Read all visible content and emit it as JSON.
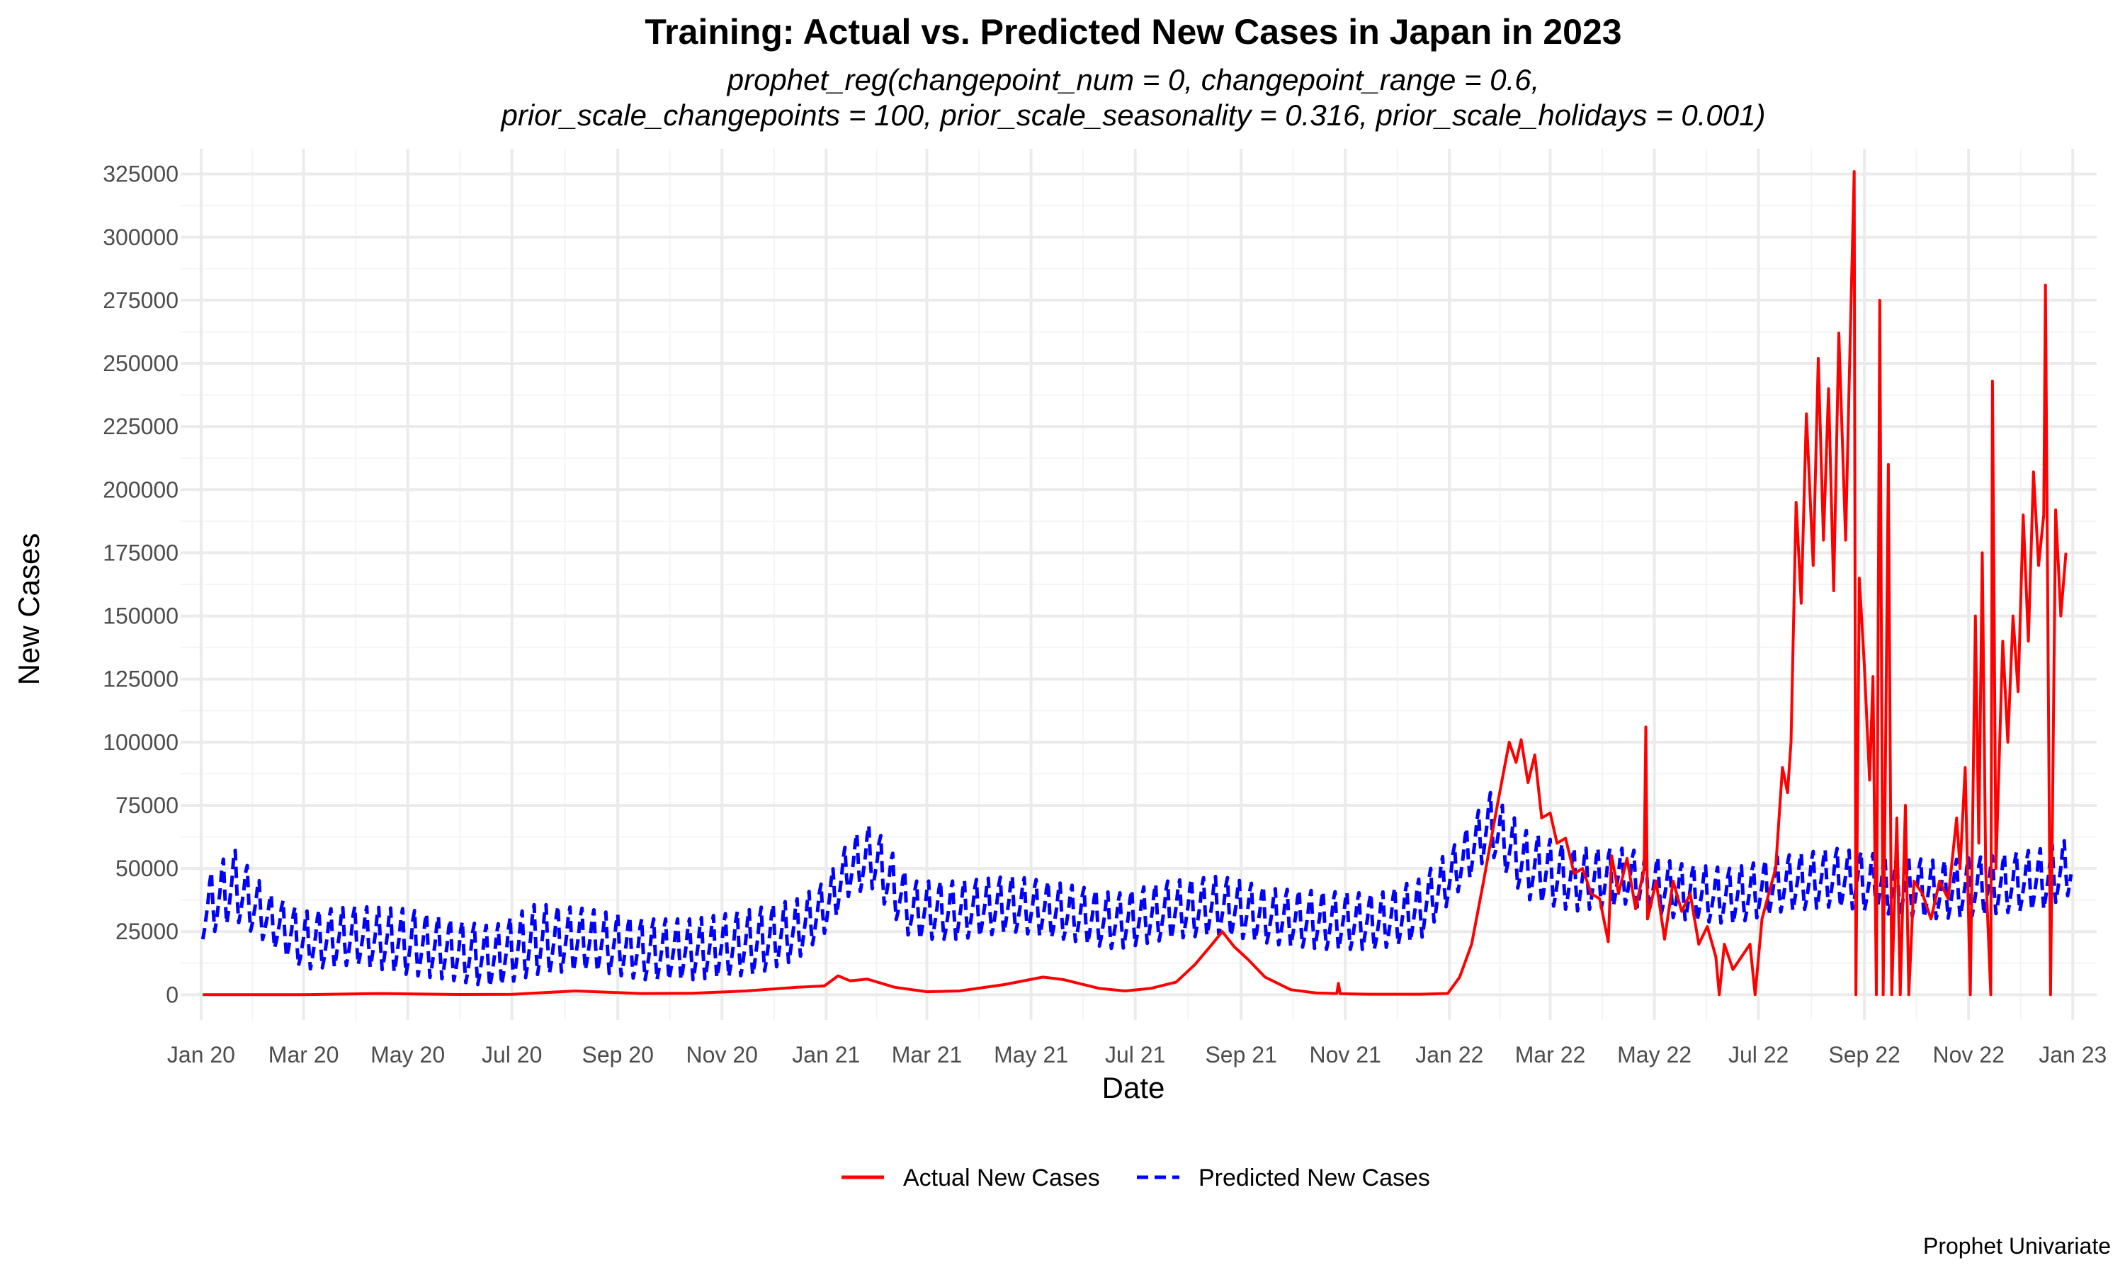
{
  "chart_data": {
    "type": "line",
    "title": "Training: Actual vs. Predicted New Cases in Japan in 2023",
    "subtitle_lines": [
      "prophet_reg(changepoint_num = 0, changepoint_range = 0.6,",
      "prior_scale_changepoints = 100, prior_scale_seasonality = 0.316, prior_scale_holidays = 0.001)"
    ],
    "xlabel": "Date",
    "ylabel": "New Cases",
    "caption": "Prophet Univariate",
    "legend_position": "bottom",
    "grid": true,
    "xlim": [
      "2019-12-20",
      "2023-01-15"
    ],
    "ylim": [
      -10000,
      335000
    ],
    "x_ticks": [
      {
        "date": "2020-01-01",
        "label": "Jan 20"
      },
      {
        "date": "2020-03-01",
        "label": "Mar 20"
      },
      {
        "date": "2020-05-01",
        "label": "May 20"
      },
      {
        "date": "2020-07-01",
        "label": "Jul 20"
      },
      {
        "date": "2020-09-01",
        "label": "Sep 20"
      },
      {
        "date": "2020-11-01",
        "label": "Nov 20"
      },
      {
        "date": "2021-01-01",
        "label": "Jan 21"
      },
      {
        "date": "2021-03-01",
        "label": "Mar 21"
      },
      {
        "date": "2021-05-01",
        "label": "May 21"
      },
      {
        "date": "2021-07-01",
        "label": "Jul 21"
      },
      {
        "date": "2021-09-01",
        "label": "Sep 21"
      },
      {
        "date": "2021-11-01",
        "label": "Nov 21"
      },
      {
        "date": "2022-01-01",
        "label": "Jan 22"
      },
      {
        "date": "2022-03-01",
        "label": "Mar 22"
      },
      {
        "date": "2022-05-01",
        "label": "May 22"
      },
      {
        "date": "2022-07-01",
        "label": "Jul 22"
      },
      {
        "date": "2022-09-01",
        "label": "Sep 22"
      },
      {
        "date": "2022-11-01",
        "label": "Nov 22"
      },
      {
        "date": "2023-01-01",
        "label": "Jan 23"
      }
    ],
    "y_ticks": [
      {
        "value": 0,
        "label": "0"
      },
      {
        "value": 25000,
        "label": "25000"
      },
      {
        "value": 50000,
        "label": "50000"
      },
      {
        "value": 75000,
        "label": "75000"
      },
      {
        "value": 100000,
        "label": "100000"
      },
      {
        "value": 125000,
        "label": "125000"
      },
      {
        "value": 150000,
        "label": "150000"
      },
      {
        "value": 175000,
        "label": "175000"
      },
      {
        "value": 200000,
        "label": "200000"
      },
      {
        "value": 225000,
        "label": "225000"
      },
      {
        "value": 250000,
        "label": "250000"
      },
      {
        "value": 275000,
        "label": "275000"
      },
      {
        "value": 300000,
        "label": "300000"
      },
      {
        "value": 325000,
        "label": "325000"
      }
    ],
    "series": [
      {
        "name": "Actual New Cases",
        "color": "#ff0000",
        "dash": "solid",
        "points": [
          [
            "2020-01-02",
            0
          ],
          [
            "2020-03-01",
            50
          ],
          [
            "2020-04-15",
            500
          ],
          [
            "2020-05-31",
            100
          ],
          [
            "2020-07-01",
            150
          ],
          [
            "2020-08-07",
            1500
          ],
          [
            "2020-09-15",
            500
          ],
          [
            "2020-10-15",
            600
          ],
          [
            "2020-11-15",
            1500
          ],
          [
            "2020-12-15",
            3000
          ],
          [
            "2020-12-31",
            3500
          ],
          [
            "2021-01-08",
            7500
          ],
          [
            "2021-01-15",
            5500
          ],
          [
            "2021-01-25",
            6200
          ],
          [
            "2021-02-10",
            3000
          ],
          [
            "2021-03-01",
            1200
          ],
          [
            "2021-03-20",
            1500
          ],
          [
            "2021-04-15",
            4000
          ],
          [
            "2021-05-08",
            7000
          ],
          [
            "2021-05-20",
            6000
          ],
          [
            "2021-06-10",
            2500
          ],
          [
            "2021-06-25",
            1500
          ],
          [
            "2021-07-10",
            2500
          ],
          [
            "2021-07-25",
            5000
          ],
          [
            "2021-08-05",
            12000
          ],
          [
            "2021-08-15",
            20000
          ],
          [
            "2021-08-21",
            25000
          ],
          [
            "2021-08-28",
            19000
          ],
          [
            "2021-09-05",
            14000
          ],
          [
            "2021-09-15",
            7000
          ],
          [
            "2021-09-30",
            2000
          ],
          [
            "2021-10-15",
            700
          ],
          [
            "2021-10-27",
            500
          ],
          [
            "2021-10-28",
            4500
          ],
          [
            "2021-10-29",
            400
          ],
          [
            "2021-11-15",
            200
          ],
          [
            "2021-12-15",
            200
          ],
          [
            "2021-12-31",
            500
          ],
          [
            "2022-01-07",
            7000
          ],
          [
            "2022-01-14",
            20000
          ],
          [
            "2022-01-21",
            45000
          ],
          [
            "2022-01-29",
            75000
          ],
          [
            "2022-02-05",
            100000
          ],
          [
            "2022-02-09",
            92000
          ],
          [
            "2022-02-12",
            101000
          ],
          [
            "2022-02-16",
            84000
          ],
          [
            "2022-02-20",
            95000
          ],
          [
            "2022-02-24",
            70000
          ],
          [
            "2022-03-01",
            72000
          ],
          [
            "2022-03-05",
            60000
          ],
          [
            "2022-03-10",
            62000
          ],
          [
            "2022-03-15",
            48000
          ],
          [
            "2022-03-20",
            50000
          ],
          [
            "2022-03-25",
            40000
          ],
          [
            "2022-03-30",
            38000
          ],
          [
            "2022-04-04",
            21000
          ],
          [
            "2022-04-06",
            55000
          ],
          [
            "2022-04-10",
            40000
          ],
          [
            "2022-04-15",
            54000
          ],
          [
            "2022-04-20",
            34000
          ],
          [
            "2022-04-25",
            50000
          ],
          [
            "2022-04-26",
            106000
          ],
          [
            "2022-04-27",
            30000
          ],
          [
            "2022-05-02",
            45000
          ],
          [
            "2022-05-07",
            22000
          ],
          [
            "2022-05-12",
            45000
          ],
          [
            "2022-05-17",
            33000
          ],
          [
            "2022-05-22",
            40000
          ],
          [
            "2022-05-27",
            20000
          ],
          [
            "2022-06-01",
            27000
          ],
          [
            "2022-06-06",
            15000
          ],
          [
            "2022-06-08",
            0
          ],
          [
            "2022-06-11",
            20000
          ],
          [
            "2022-06-16",
            10000
          ],
          [
            "2022-06-21",
            15000
          ],
          [
            "2022-06-26",
            20000
          ],
          [
            "2022-06-29",
            0
          ],
          [
            "2022-07-03",
            30000
          ],
          [
            "2022-07-07",
            40000
          ],
          [
            "2022-07-11",
            50000
          ],
          [
            "2022-07-15",
            90000
          ],
          [
            "2022-07-18",
            80000
          ],
          [
            "2022-07-20",
            100000
          ],
          [
            "2022-07-23",
            195000
          ],
          [
            "2022-07-26",
            155000
          ],
          [
            "2022-07-29",
            230000
          ],
          [
            "2022-08-02",
            170000
          ],
          [
            "2022-08-05",
            252000
          ],
          [
            "2022-08-08",
            180000
          ],
          [
            "2022-08-11",
            240000
          ],
          [
            "2022-08-14",
            160000
          ],
          [
            "2022-08-17",
            262000
          ],
          [
            "2022-08-21",
            180000
          ],
          [
            "2022-08-23",
            240000
          ],
          [
            "2022-08-26",
            326000
          ],
          [
            "2022-08-27",
            0
          ],
          [
            "2022-08-29",
            165000
          ],
          [
            "2022-09-01",
            130000
          ],
          [
            "2022-09-04",
            85000
          ],
          [
            "2022-09-06",
            126000
          ],
          [
            "2022-09-08",
            0
          ],
          [
            "2022-09-10",
            275000
          ],
          [
            "2022-09-12",
            0
          ],
          [
            "2022-09-15",
            210000
          ],
          [
            "2022-09-17",
            0
          ],
          [
            "2022-09-20",
            70000
          ],
          [
            "2022-09-22",
            0
          ],
          [
            "2022-09-25",
            75000
          ],
          [
            "2022-09-27",
            0
          ],
          [
            "2022-09-30",
            45000
          ],
          [
            "2022-10-05",
            40000
          ],
          [
            "2022-10-10",
            30000
          ],
          [
            "2022-10-15",
            45000
          ],
          [
            "2022-10-20",
            38000
          ],
          [
            "2022-10-25",
            70000
          ],
          [
            "2022-10-27",
            50000
          ],
          [
            "2022-10-30",
            90000
          ],
          [
            "2022-11-02",
            0
          ],
          [
            "2022-11-05",
            150000
          ],
          [
            "2022-11-07",
            60000
          ],
          [
            "2022-11-09",
            175000
          ],
          [
            "2022-11-11",
            50000
          ],
          [
            "2022-11-14",
            0
          ],
          [
            "2022-11-15",
            243000
          ],
          [
            "2022-11-17",
            50000
          ],
          [
            "2022-11-21",
            140000
          ],
          [
            "2022-11-24",
            100000
          ],
          [
            "2022-11-27",
            150000
          ],
          [
            "2022-11-30",
            120000
          ],
          [
            "2022-12-03",
            190000
          ],
          [
            "2022-12-06",
            140000
          ],
          [
            "2022-12-09",
            207000
          ],
          [
            "2022-12-12",
            170000
          ],
          [
            "2022-12-15",
            190000
          ],
          [
            "2022-12-16",
            281000
          ],
          [
            "2022-12-19",
            0
          ],
          [
            "2022-12-22",
            192000
          ],
          [
            "2022-12-25",
            150000
          ],
          [
            "2022-12-28",
            175000
          ]
        ]
      },
      {
        "name": "Predicted New Cases",
        "color": "#0000ff",
        "dash": "dashed",
        "weekly_amplitude_pattern": [
          0.0,
          0.15,
          0.35,
          0.55,
          0.85,
          1.0,
          0.4
        ],
        "upper_envelope": [
          [
            "2020-01-02",
            45000
          ],
          [
            "2020-01-20",
            58000
          ],
          [
            "2020-02-10",
            40000
          ],
          [
            "2020-03-01",
            33000
          ],
          [
            "2020-04-01",
            35000
          ],
          [
            "2020-05-01",
            34000
          ],
          [
            "2020-05-25",
            30000
          ],
          [
            "2020-06-20",
            27000
          ],
          [
            "2020-07-15",
            36000
          ],
          [
            "2020-08-15",
            34000
          ],
          [
            "2020-09-15",
            30000
          ],
          [
            "2020-10-15",
            30000
          ],
          [
            "2020-11-20",
            34000
          ],
          [
            "2020-12-15",
            38000
          ],
          [
            "2021-01-01",
            45000
          ],
          [
            "2021-01-15",
            62000
          ],
          [
            "2021-01-28",
            68000
          ],
          [
            "2021-02-20",
            45000
          ],
          [
            "2021-03-20",
            45000
          ],
          [
            "2021-04-20",
            47000
          ],
          [
            "2021-05-20",
            44000
          ],
          [
            "2021-06-20",
            40000
          ],
          [
            "2021-07-20",
            45000
          ],
          [
            "2021-08-20",
            47000
          ],
          [
            "2021-09-20",
            42000
          ],
          [
            "2021-10-20",
            41000
          ],
          [
            "2021-11-20",
            40000
          ],
          [
            "2021-12-15",
            46000
          ],
          [
            "2022-01-05",
            60000
          ],
          [
            "2022-01-25",
            80000
          ],
          [
            "2022-02-15",
            65000
          ],
          [
            "2022-03-15",
            58000
          ],
          [
            "2022-04-15",
            58000
          ],
          [
            "2022-05-15",
            52000
          ],
          [
            "2022-06-15",
            50000
          ],
          [
            "2022-07-15",
            55000
          ],
          [
            "2022-08-15",
            58000
          ],
          [
            "2022-09-15",
            55000
          ],
          [
            "2022-10-15",
            53000
          ],
          [
            "2022-11-15",
            55000
          ],
          [
            "2022-12-15",
            58000
          ],
          [
            "2022-12-31",
            62000
          ]
        ],
        "lower_envelope": [
          [
            "2020-01-02",
            22000
          ],
          [
            "2020-01-20",
            30000
          ],
          [
            "2020-02-10",
            20000
          ],
          [
            "2020-03-01",
            10000
          ],
          [
            "2020-04-01",
            12000
          ],
          [
            "2020-05-01",
            8000
          ],
          [
            "2020-05-25",
            6000
          ],
          [
            "2020-06-20",
            3000
          ],
          [
            "2020-07-15",
            8000
          ],
          [
            "2020-08-15",
            10000
          ],
          [
            "2020-09-15",
            6000
          ],
          [
            "2020-10-15",
            6000
          ],
          [
            "2020-11-20",
            8000
          ],
          [
            "2020-12-15",
            14000
          ],
          [
            "2021-01-01",
            25000
          ],
          [
            "2021-01-15",
            40000
          ],
          [
            "2021-01-28",
            42000
          ],
          [
            "2021-02-20",
            22000
          ],
          [
            "2021-03-20",
            22000
          ],
          [
            "2021-04-20",
            25000
          ],
          [
            "2021-05-20",
            22000
          ],
          [
            "2021-06-20",
            18000
          ],
          [
            "2021-07-20",
            22000
          ],
          [
            "2021-08-20",
            24000
          ],
          [
            "2021-09-20",
            20000
          ],
          [
            "2021-10-20",
            18000
          ],
          [
            "2021-11-20",
            18000
          ],
          [
            "2021-12-15",
            22000
          ],
          [
            "2022-01-05",
            40000
          ],
          [
            "2022-01-25",
            56000
          ],
          [
            "2022-02-15",
            38000
          ],
          [
            "2022-03-15",
            33000
          ],
          [
            "2022-04-15",
            36000
          ],
          [
            "2022-05-15",
            30000
          ],
          [
            "2022-06-15",
            28000
          ],
          [
            "2022-07-15",
            33000
          ],
          [
            "2022-08-15",
            35000
          ],
          [
            "2022-09-15",
            32000
          ],
          [
            "2022-10-15",
            30000
          ],
          [
            "2022-11-15",
            32000
          ],
          [
            "2022-12-15",
            34000
          ],
          [
            "2022-12-31",
            40000
          ]
        ]
      }
    ]
  }
}
